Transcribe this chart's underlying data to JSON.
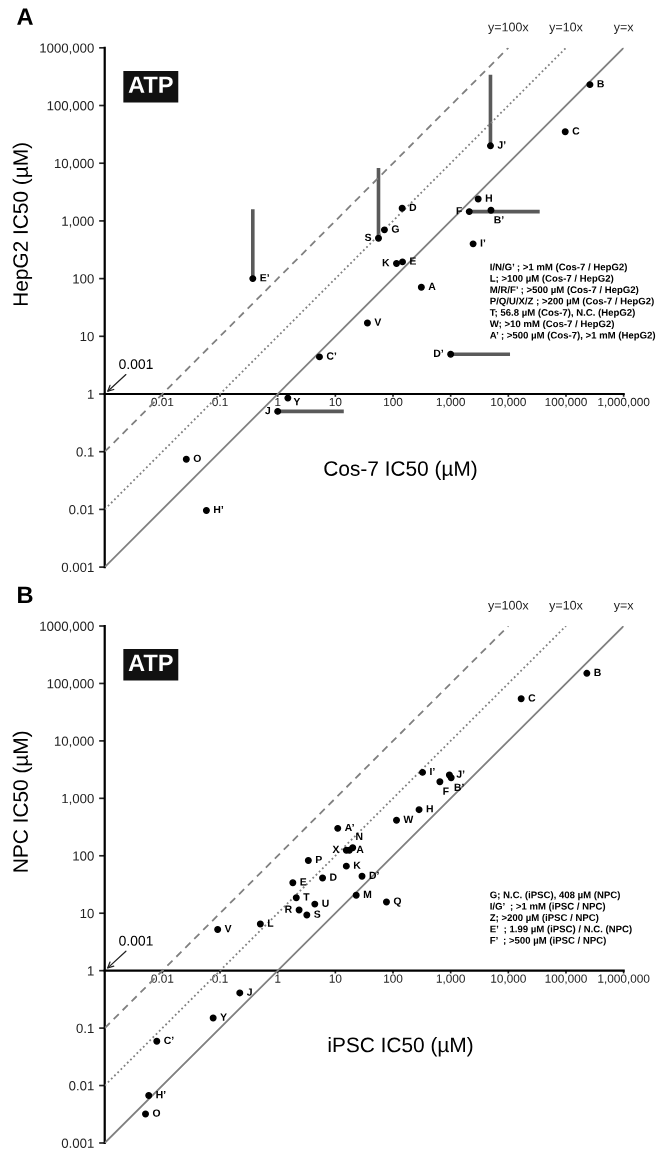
{
  "chart_data": [
    {
      "type": "scatter",
      "title": "A",
      "subtitle": "ATP",
      "xlabel": "Cos-7 IC50 (µM)",
      "ylabel": "HepG2 IC50 (µM)",
      "log": "xy",
      "xlim": [
        0.001,
        1000000
      ],
      "ylim": [
        0.001,
        1000000
      ],
      "xticks": [
        0.01,
        0.1,
        1,
        10,
        100,
        {
          "value": 1000,
          "label": "1,000"
        },
        {
          "value": 10000,
          "label": "10,000"
        },
        {
          "value": 100000,
          "label": "100,000"
        },
        {
          "value": 1000000,
          "label": "1,000,000"
        }
      ],
      "yticks": [
        0.001,
        0.01,
        0.1,
        1,
        10,
        100,
        {
          "value": 1000,
          "label": "1,000"
        },
        {
          "value": 10000,
          "label": "10,000"
        },
        {
          "value": 100000,
          "label": "100,000"
        },
        {
          "value": 1000000,
          "label": "1000,000"
        }
      ],
      "series": [
        {
          "marker": "circle",
          "color": "#000000",
          "x": [
            260000,
            97000,
            4900,
            3000,
            5000,
            2100,
            144,
            71,
            56,
            146,
            115,
            2450,
            0.37,
            310,
            36,
            5.3,
            1000,
            1.5,
            1.0,
            0.026,
            0.058
          ],
          "values": [
            230000,
            35000,
            20000,
            2400,
            1530,
            1450,
            1660,
            700,
            500,
            195,
            183,
            400,
            100,
            71,
            17,
            4.4,
            4.9,
            0.85,
            0.5,
            0.074,
            0.0096
          ],
          "value_labels": [
            "B",
            "C",
            "J’",
            "H",
            "B’",
            "F",
            "D",
            "G",
            "S",
            "E",
            "K",
            "I’",
            "E’",
            "A",
            "V",
            "C’",
            "D’",
            "Y",
            "J",
            "O",
            "H’"
          ],
          "errors": [
            null,
            null,
            [
              20000,
              340000
            ],
            null,
            null,
            null,
            null,
            null,
            [
              500,
              8300
            ],
            null,
            null,
            null,
            [
              100,
              1600
            ],
            null,
            null,
            null,
            null,
            null,
            null,
            null,
            null
          ],
          "xerrors": [
            null,
            null,
            null,
            null,
            null,
            [
              2100,
              35000
            ],
            null,
            null,
            null,
            null,
            null,
            null,
            null,
            null,
            null,
            null,
            [
              1000,
              10700
            ],
            null,
            [
              1.0,
              14
            ],
            null,
            null
          ]
        },
        {
          "type": "line",
          "name": "y=x",
          "color": "#808080",
          "line_style": "solid",
          "x": [
            0.001,
            1000000
          ],
          "values": [
            0.001,
            1000000
          ]
        },
        {
          "type": "line",
          "name": "y=10x",
          "color": "#808080",
          "line_style": "dotted",
          "x": [
            0.001,
            100000
          ],
          "values": [
            0.01,
            1000000
          ]
        },
        {
          "type": "line",
          "name": "y=100x",
          "color": "#808080",
          "line_style": "dashed",
          "x": [
            0.001,
            10000
          ],
          "values": [
            0.1,
            1000000
          ]
        }
      ],
      "annotations": [
        "0.001",
        "I/N/G’ ; >1 mM (Cos-7 / HepG2)\nL; >100 µM (Cos-7 / HepG2)\nM/R/F’ ; >500 µM (Cos-7 / HepG2)\nP/Q/U/X/Z ; >200 µM (Cos-7 / HepG2)\nT; 56.8 µM (Cos-7), N.C. (HepG2)\nW; >10 mM (Cos-7 / HepG2)\nA’ ; >500 µM (Cos-7), >1 mM (HepG2)"
      ]
    },
    {
      "type": "scatter",
      "title": "B",
      "subtitle": "ATP",
      "xlabel": "iPSC IC50 (µM)",
      "ylabel": "NPC IC50 (µM)",
      "log": "xy",
      "xlim": [
        0.001,
        1000000
      ],
      "ylim": [
        0.001,
        1000000
      ],
      "xticks": [
        0.01,
        0.1,
        1,
        10,
        100,
        {
          "value": 1000,
          "label": "1,000"
        },
        {
          "value": 10000,
          "label": "10,000"
        },
        {
          "value": 100000,
          "label": "100,000"
        },
        {
          "value": 1000000,
          "label": "1,000,000"
        }
      ],
      "yticks": [
        0.001,
        0.01,
        0.1,
        1,
        10,
        100,
        {
          "value": 1000,
          "label": "1,000"
        },
        {
          "value": 10000,
          "label": "10,000"
        },
        {
          "value": 100000,
          "label": "100,000"
        },
        {
          "value": 1000000,
          "label": "1000,000"
        }
      ],
      "series": [
        {
          "marker": "circle",
          "color": "#000000",
          "x": [
            230000,
            16700,
            325,
            950,
            1020,
            650,
            283,
            115,
            11,
            15.5,
            17.5,
            20,
            3.4,
            15.5,
            29,
            6.0,
            1.83,
            2.1,
            23,
            77,
            4.4,
            2.35,
            3.2,
            0.5,
            0.091,
            0.22,
            0.076,
            0.008,
            0.0058,
            0.0051
          ],
          "values": [
            150000,
            54000,
            2830,
            2550,
            2280,
            1950,
            635,
            415,
            300,
            125,
            125,
            138,
            83,
            66,
            44,
            41,
            34,
            18.6,
            20.6,
            15.7,
            14.4,
            11.4,
            9.3,
            6.5,
            5.2,
            0.41,
            0.15,
            0.059,
            0.0067,
            0.0032
          ],
          "value_labels": [
            "B",
            "C",
            "I’",
            "J’",
            "B’",
            "F",
            "H",
            "W",
            "A’",
            "X",
            "A",
            "N",
            "P",
            "K",
            "D’",
            "D",
            "E",
            "T",
            "M",
            "Q",
            "U",
            "R",
            "S",
            "L",
            "V",
            "J",
            "Y",
            "C’",
            "H’",
            "O"
          ]
        },
        {
          "type": "line",
          "name": "y=x",
          "color": "#808080",
          "line_style": "solid",
          "x": [
            0.001,
            1000000
          ],
          "values": [
            0.001,
            1000000
          ]
        },
        {
          "type": "line",
          "name": "y=10x",
          "color": "#808080",
          "line_style": "dotted",
          "x": [
            0.001,
            100000
          ],
          "values": [
            0.01,
            1000000
          ]
        },
        {
          "type": "line",
          "name": "y=100x",
          "color": "#808080",
          "line_style": "dashed",
          "x": [
            0.001,
            10000
          ],
          "values": [
            0.1,
            1000000
          ]
        }
      ],
      "annotations": [
        "0.001",
        "G; N.C. (iPSC), 408 µM (NPC)\nI/G’  ; >1 mM (iPSC / NPC)\nZ; >200 µM (iPSC / NPC)\nE’  ; 1.99 µM (iPSC) / N.C. (NPC)\nF’  ; >500 µM (iPSC / NPC)"
      ]
    }
  ]
}
